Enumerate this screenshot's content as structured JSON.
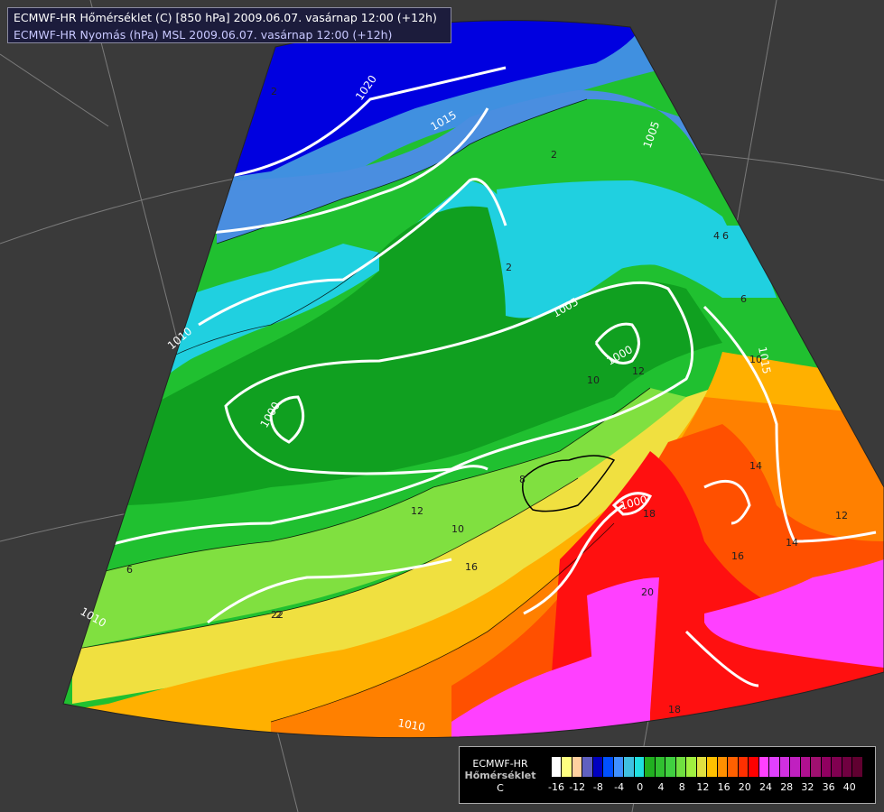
{
  "title": {
    "line1": "ECMWF-HR Hőmérséklet (C) [850 hPa] 2009.06.07. vasárnap 12:00 (+12h)",
    "line2": "ECMWF-HR Nyomás (hPa) MSL 2009.06.07. vasárnap 12:00 (+12h)"
  },
  "legend": {
    "model": "ECMWF-HR",
    "variable": "Hőmérséklet",
    "unit": "C",
    "swatch_colors": [
      "#000000",
      "#ffffff",
      "#ffff80",
      "#ffd0a0",
      "#6060c0",
      "#0000c0",
      "#0050ff",
      "#4090ff",
      "#40c0e0",
      "#20e0e0",
      "#20b020",
      "#30c030",
      "#40d040",
      "#70e040",
      "#a0f040",
      "#e0e040",
      "#ffc000",
      "#ff9000",
      "#ff6000",
      "#ff3000",
      "#ff0000",
      "#ff40ff",
      "#e040ff",
      "#d030e0",
      "#c020c0",
      "#b01090",
      "#a01070",
      "#900060",
      "#800050",
      "#700040",
      "#600030"
    ],
    "ticks": [
      "-16",
      "-12",
      "-8",
      "-4",
      "0",
      "4",
      "8",
      "12",
      "16",
      "20",
      "24",
      "28",
      "32",
      "36",
      "40"
    ]
  },
  "isobars": [
    "1020",
    "1015",
    "1010",
    "1005",
    "1000",
    "1000",
    "1000",
    "1015",
    "1010",
    "1005",
    "1010"
  ],
  "isotherms": [
    "2",
    "2",
    "2",
    "2",
    "4",
    "6",
    "6",
    "8",
    "10",
    "10",
    "10",
    "12",
    "12",
    "12",
    "14",
    "14",
    "16",
    "16",
    "18",
    "18",
    "20",
    "22",
    "6"
  ],
  "colors": {
    "background": "#3a3a3a",
    "cold_deep": "#0000e0",
    "cold_mid": "#4090e0",
    "cold_light": "#20d0e0",
    "green_dark": "#10a020",
    "green_mid": "#20c030",
    "green_light": "#80e040",
    "yellow": "#f0e040",
    "orange_light": "#ffb000",
    "orange": "#ff8000",
    "red_orange": "#ff5000",
    "red": "#ff0000",
    "magenta": "#ff40ff"
  }
}
